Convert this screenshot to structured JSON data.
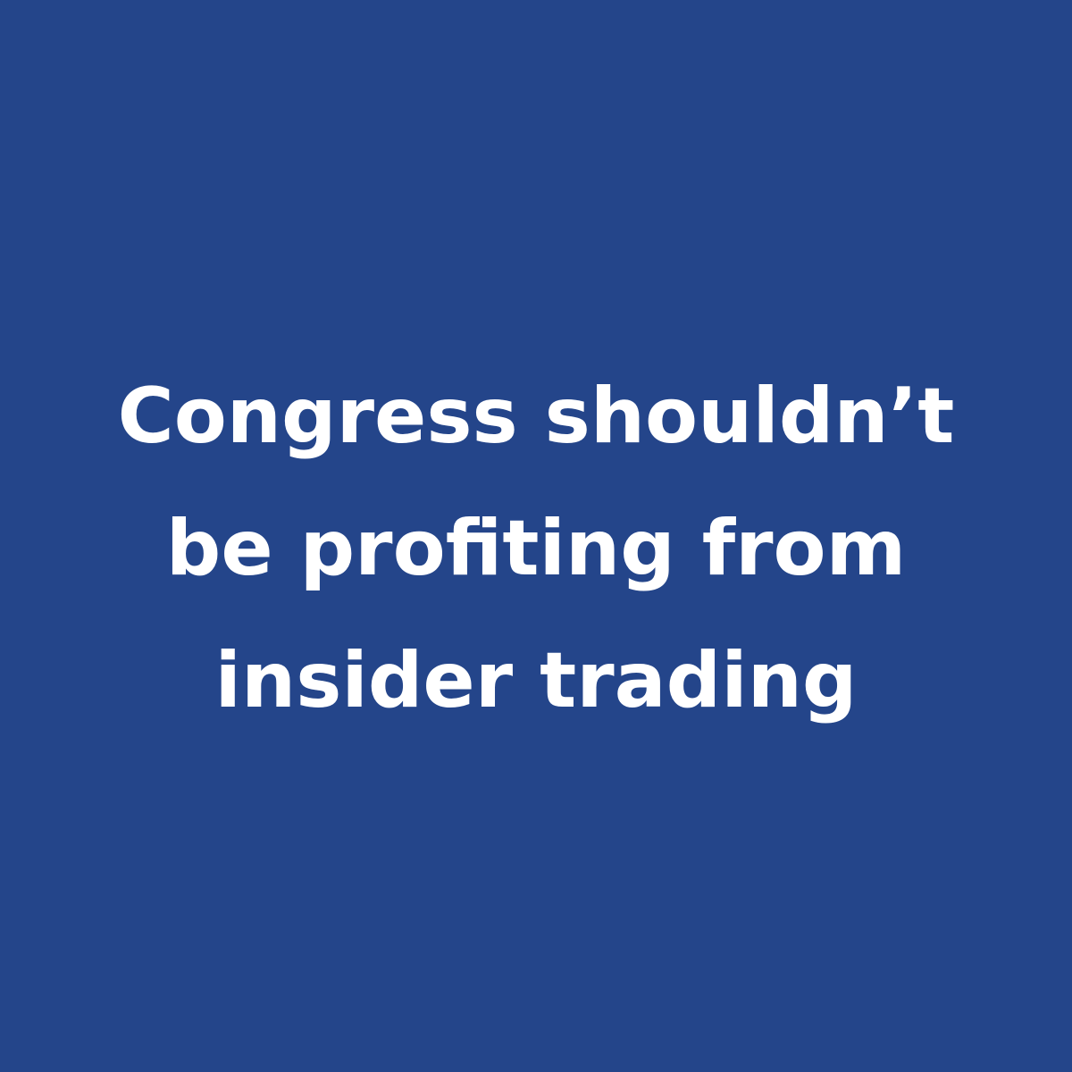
{
  "colors": {
    "background": "#24458a",
    "text": "#ffffff"
  },
  "headline": {
    "lines": [
      "Congress shouldn’t",
      "be profiting from",
      "insider trading"
    ]
  }
}
